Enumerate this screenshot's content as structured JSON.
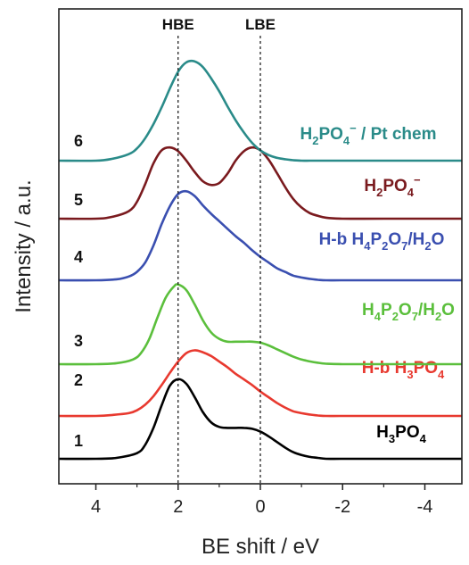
{
  "chart_data": {
    "type": "line",
    "xlabel": "BE shift / eV",
    "ylabel": "Intensity / a.u.",
    "xlim": [
      4.9,
      -4.9
    ],
    "xticks": [
      "4",
      "2",
      "0",
      "-2",
      "-4"
    ],
    "xtick_values": [
      4,
      2,
      0,
      -2,
      -4
    ],
    "reference_lines": [
      {
        "label": "HBE",
        "x": 2.0
      },
      {
        "label": "LBE",
        "x": 0.0
      }
    ],
    "legend": "none",
    "grid": false,
    "series": [
      {
        "number": "1",
        "name_base": "H",
        "name_parts": [
          [
            "H",
            ""
          ],
          [
            "3",
            "sub"
          ],
          [
            "PO",
            ""
          ],
          [
            "4",
            "sub"
          ]
        ],
        "color": "#000000",
        "x": [
          4.9,
          4.0,
          3.5,
          3.0,
          2.8,
          2.6,
          2.4,
          2.2,
          2.0,
          1.8,
          1.6,
          1.4,
          1.2,
          1.0,
          0.8,
          0.6,
          0.4,
          0.2,
          0.0,
          -0.2,
          -0.4,
          -0.6,
          -0.8,
          -1.0,
          -1.2,
          -1.4,
          -1.6,
          -2.0,
          -3.0,
          -4.9
        ],
        "y": [
          0.0,
          0.0,
          0.01,
          0.06,
          0.15,
          0.33,
          0.57,
          0.78,
          0.85,
          0.8,
          0.66,
          0.5,
          0.39,
          0.34,
          0.33,
          0.33,
          0.33,
          0.32,
          0.29,
          0.24,
          0.18,
          0.12,
          0.07,
          0.04,
          0.02,
          0.01,
          0.0,
          0.0,
          0.0,
          0.0
        ]
      },
      {
        "number": "2",
        "name_parts": [
          [
            "H-b H",
            ""
          ],
          [
            "3",
            "sub"
          ],
          [
            "PO",
            ""
          ],
          [
            "4",
            "sub"
          ]
        ],
        "color": "#e8392f",
        "x": [
          4.9,
          4.0,
          3.6,
          3.2,
          3.0,
          2.8,
          2.6,
          2.4,
          2.2,
          2.0,
          1.8,
          1.6,
          1.4,
          1.2,
          1.0,
          0.8,
          0.6,
          0.4,
          0.2,
          0.0,
          -0.2,
          -0.4,
          -0.6,
          -0.8,
          -1.0,
          -1.2,
          -1.4,
          -1.6,
          -2.0,
          -3.0,
          -4.9
        ],
        "y": [
          0.0,
          0.0,
          0.01,
          0.03,
          0.06,
          0.12,
          0.21,
          0.33,
          0.46,
          0.58,
          0.67,
          0.7,
          0.68,
          0.64,
          0.58,
          0.52,
          0.45,
          0.39,
          0.33,
          0.26,
          0.2,
          0.14,
          0.09,
          0.05,
          0.03,
          0.015,
          0.005,
          0.0,
          0.0,
          0.0,
          0.0
        ]
      },
      {
        "number": "3",
        "name_parts": [
          [
            "H",
            ""
          ],
          [
            "4",
            "sub"
          ],
          [
            "P",
            ""
          ],
          [
            "2",
            "sub"
          ],
          [
            "O",
            ""
          ],
          [
            "7",
            "sub"
          ],
          [
            "/H",
            ""
          ],
          [
            "2",
            "sub"
          ],
          [
            "O",
            ""
          ]
        ],
        "color": "#5bbf3c",
        "x": [
          4.9,
          4.0,
          3.5,
          3.1,
          2.9,
          2.7,
          2.5,
          2.3,
          2.1,
          2.0,
          1.8,
          1.6,
          1.4,
          1.2,
          1.0,
          0.8,
          0.6,
          0.4,
          0.2,
          0.0,
          -0.2,
          -0.4,
          -0.6,
          -0.8,
          -1.0,
          -1.2,
          -1.4,
          -1.6,
          -2.0,
          -3.0,
          -4.9
        ],
        "y": [
          0.0,
          0.0,
          0.01,
          0.05,
          0.12,
          0.27,
          0.5,
          0.71,
          0.83,
          0.85,
          0.79,
          0.64,
          0.47,
          0.34,
          0.27,
          0.24,
          0.24,
          0.24,
          0.24,
          0.23,
          0.2,
          0.16,
          0.12,
          0.08,
          0.05,
          0.03,
          0.015,
          0.005,
          0.0,
          0.0,
          0.0
        ]
      },
      {
        "number": "4",
        "name_parts": [
          [
            "H-b H",
            ""
          ],
          [
            "4",
            "sub"
          ],
          [
            "P",
            ""
          ],
          [
            "2",
            "sub"
          ],
          [
            "O",
            ""
          ],
          [
            "7",
            "sub"
          ],
          [
            "/H",
            ""
          ],
          [
            "2",
            "sub"
          ],
          [
            "O",
            ""
          ]
        ],
        "color": "#3a4fb0",
        "x": [
          4.9,
          4.0,
          3.5,
          3.2,
          3.0,
          2.8,
          2.6,
          2.4,
          2.2,
          2.0,
          1.8,
          1.6,
          1.4,
          1.2,
          1.0,
          0.8,
          0.6,
          0.4,
          0.2,
          0.0,
          -0.2,
          -0.4,
          -0.6,
          -0.8,
          -1.0,
          -1.2,
          -1.4,
          -1.6,
          -2.0,
          -3.0,
          -4.9
        ],
        "y": [
          0.0,
          0.0,
          0.01,
          0.04,
          0.09,
          0.19,
          0.37,
          0.6,
          0.79,
          0.92,
          0.95,
          0.9,
          0.8,
          0.71,
          0.63,
          0.55,
          0.47,
          0.4,
          0.32,
          0.25,
          0.19,
          0.13,
          0.09,
          0.05,
          0.03,
          0.015,
          0.005,
          0.0,
          0.0,
          0.0,
          0.0
        ]
      },
      {
        "number": "5",
        "name_parts": [
          [
            "H",
            ""
          ],
          [
            "2",
            "sub"
          ],
          [
            "PO",
            ""
          ],
          [
            "4",
            "sub"
          ],
          [
            "−",
            "sup"
          ]
        ],
        "color": "#7a1a1e",
        "x": [
          4.9,
          4.0,
          3.6,
          3.2,
          3.0,
          2.8,
          2.6,
          2.4,
          2.2,
          2.0,
          1.8,
          1.6,
          1.4,
          1.2,
          1.0,
          0.8,
          0.6,
          0.4,
          0.2,
          0.0,
          -0.2,
          -0.4,
          -0.6,
          -0.8,
          -1.0,
          -1.2,
          -1.4,
          -1.6,
          -2.0,
          -3.0,
          -4.9
        ],
        "y": [
          0.0,
          0.0,
          0.02,
          0.08,
          0.18,
          0.37,
          0.59,
          0.73,
          0.76,
          0.72,
          0.62,
          0.5,
          0.4,
          0.36,
          0.38,
          0.48,
          0.62,
          0.72,
          0.76,
          0.73,
          0.63,
          0.49,
          0.34,
          0.21,
          0.12,
          0.06,
          0.03,
          0.01,
          0.0,
          0.0,
          0.0
        ]
      },
      {
        "number": "6",
        "name_parts": [
          [
            "H",
            ""
          ],
          [
            "2",
            "sub"
          ],
          [
            "PO",
            ""
          ],
          [
            "4",
            "sub"
          ],
          [
            "−",
            "sup"
          ],
          [
            " / Pt chem",
            ""
          ]
        ],
        "color": "#2a8b89",
        "x": [
          4.9,
          4.0,
          3.6,
          3.2,
          3.0,
          2.8,
          2.6,
          2.4,
          2.2,
          2.0,
          1.8,
          1.6,
          1.4,
          1.2,
          1.0,
          0.8,
          0.6,
          0.4,
          0.2,
          0.0,
          -0.2,
          -0.4,
          -0.6,
          -0.8,
          -1.0,
          -1.2,
          -1.4,
          -1.6,
          -2.0,
          -3.0,
          -4.9
        ],
        "y": [
          0.0,
          0.0,
          0.02,
          0.07,
          0.13,
          0.24,
          0.39,
          0.57,
          0.77,
          0.95,
          1.05,
          1.06,
          1.0,
          0.88,
          0.74,
          0.58,
          0.43,
          0.3,
          0.19,
          0.11,
          0.06,
          0.03,
          0.015,
          0.005,
          0.0,
          0.0,
          0.0,
          0.0,
          0.0,
          0.0,
          0.0
        ]
      }
    ]
  }
}
